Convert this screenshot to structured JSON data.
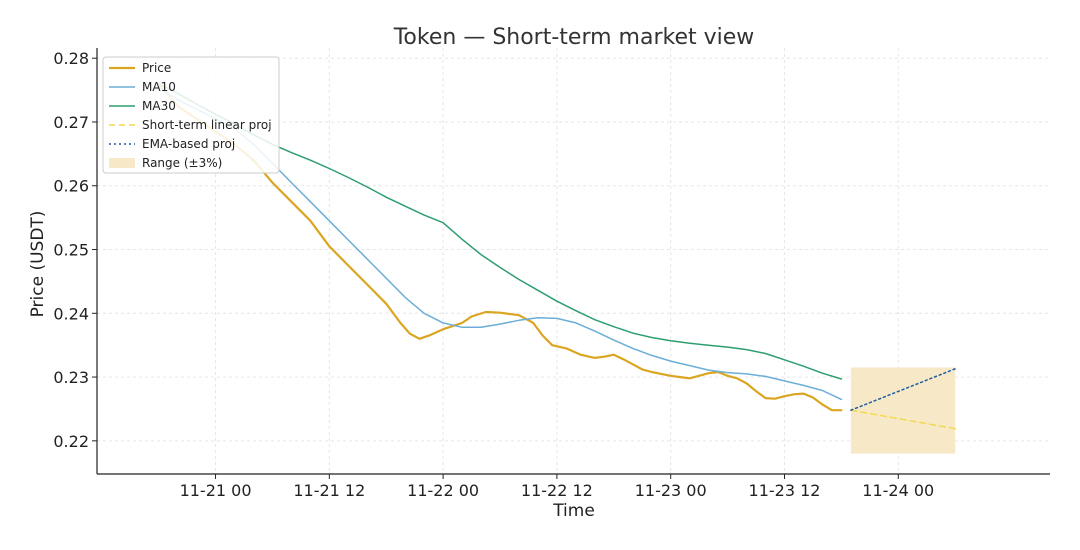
{
  "chart_data": {
    "type": "line",
    "title": "Token — Short-term market view",
    "xlabel": "Time",
    "ylabel": "Price (USDT)",
    "x_unit": "hours",
    "xlim": [
      -12.5,
      88
    ],
    "ylim": [
      0.2148,
      0.2816
    ],
    "x_ticks": [
      {
        "x": 0,
        "label": "11-21 00"
      },
      {
        "x": 12,
        "label": "11-21 12"
      },
      {
        "x": 24,
        "label": "11-22 00"
      },
      {
        "x": 36,
        "label": "11-22 12"
      },
      {
        "x": 48,
        "label": "11-23 00"
      },
      {
        "x": 60,
        "label": "11-23 12"
      },
      {
        "x": 72,
        "label": "11-24 00"
      }
    ],
    "y_ticks": [
      {
        "y": 0.22,
        "label": "0.22"
      },
      {
        "y": 0.23,
        "label": "0.23"
      },
      {
        "y": 0.24,
        "label": "0.24"
      },
      {
        "y": 0.25,
        "label": "0.25"
      },
      {
        "y": 0.26,
        "label": "0.26"
      },
      {
        "y": 0.27,
        "label": "0.27"
      },
      {
        "y": 0.28,
        "label": "0.28"
      }
    ],
    "grid": true,
    "legend_position": "top-left",
    "series": [
      {
        "name": "Price",
        "color": "#DAA520",
        "style": "solid",
        "points": [
          [
            -6,
            0.276
          ],
          [
            -4,
            0.2725
          ],
          [
            -2,
            0.2705
          ],
          [
            0,
            0.2685
          ],
          [
            2,
            0.2665
          ],
          [
            4,
            0.264
          ],
          [
            6,
            0.2605
          ],
          [
            8,
            0.2575
          ],
          [
            10,
            0.2545
          ],
          [
            12,
            0.2505
          ],
          [
            14,
            0.2475
          ],
          [
            16,
            0.2445
          ],
          [
            18,
            0.2415
          ],
          [
            19.5,
            0.2385
          ],
          [
            20.5,
            0.2368
          ],
          [
            21.5,
            0.236
          ],
          [
            22.5,
            0.2365
          ],
          [
            24,
            0.2375
          ],
          [
            26,
            0.2385
          ],
          [
            27,
            0.2395
          ],
          [
            28.5,
            0.2402
          ],
          [
            30,
            0.2401
          ],
          [
            32,
            0.2397
          ],
          [
            33.5,
            0.2385
          ],
          [
            34.5,
            0.2365
          ],
          [
            35.5,
            0.235
          ],
          [
            37,
            0.2345
          ],
          [
            38.5,
            0.2335
          ],
          [
            40,
            0.233
          ],
          [
            41,
            0.2332
          ],
          [
            42,
            0.2335
          ],
          [
            43,
            0.2328
          ],
          [
            44,
            0.232
          ],
          [
            45,
            0.2312
          ],
          [
            46,
            0.2308
          ],
          [
            47,
            0.2305
          ],
          [
            48,
            0.2302
          ],
          [
            49,
            0.23
          ],
          [
            50,
            0.2298
          ],
          [
            51,
            0.2302
          ],
          [
            52,
            0.2306
          ],
          [
            53,
            0.2308
          ],
          [
            54,
            0.2302
          ],
          [
            55,
            0.2298
          ],
          [
            56,
            0.229
          ],
          [
            57,
            0.2278
          ],
          [
            58,
            0.2267
          ],
          [
            59,
            0.2266
          ],
          [
            60,
            0.227
          ],
          [
            61,
            0.2273
          ],
          [
            62,
            0.2274
          ],
          [
            63,
            0.2268
          ],
          [
            64,
            0.2257
          ],
          [
            65,
            0.2248
          ],
          [
            66,
            0.2248
          ]
        ]
      },
      {
        "name": "MA10",
        "color": "#6BAED6",
        "style": "solid",
        "points": [
          [
            -6,
            0.2755
          ],
          [
            -4,
            0.2735
          ],
          [
            -2,
            0.272
          ],
          [
            0,
            0.2705
          ],
          [
            2,
            0.269
          ],
          [
            4,
            0.2665
          ],
          [
            6,
            0.2635
          ],
          [
            8,
            0.2605
          ],
          [
            10,
            0.2575
          ],
          [
            12,
            0.2545
          ],
          [
            14,
            0.2515
          ],
          [
            16,
            0.2485
          ],
          [
            18,
            0.2455
          ],
          [
            20,
            0.2425
          ],
          [
            22,
            0.24
          ],
          [
            24,
            0.2385
          ],
          [
            26,
            0.2378
          ],
          [
            28,
            0.2378
          ],
          [
            30,
            0.2383
          ],
          [
            32,
            0.2389
          ],
          [
            34,
            0.2393
          ],
          [
            36,
            0.2392
          ],
          [
            38,
            0.2385
          ],
          [
            40,
            0.2372
          ],
          [
            42,
            0.2358
          ],
          [
            44,
            0.2345
          ],
          [
            46,
            0.2334
          ],
          [
            48,
            0.2325
          ],
          [
            50,
            0.2318
          ],
          [
            52,
            0.2311
          ],
          [
            54,
            0.2307
          ],
          [
            56,
            0.2305
          ],
          [
            58,
            0.2301
          ],
          [
            60,
            0.2294
          ],
          [
            62,
            0.2287
          ],
          [
            64,
            0.2279
          ],
          [
            66,
            0.2265
          ]
        ]
      },
      {
        "name": "MA30",
        "color": "#2E9E6E",
        "style": "solid",
        "points": [
          [
            -6,
            0.276
          ],
          [
            -4,
            0.2745
          ],
          [
            -2,
            0.2728
          ],
          [
            0,
            0.2712
          ],
          [
            2,
            0.2697
          ],
          [
            4,
            0.268
          ],
          [
            6,
            0.2665
          ],
          [
            8,
            0.2652
          ],
          [
            10,
            0.264
          ],
          [
            12,
            0.2627
          ],
          [
            14,
            0.2613
          ],
          [
            16,
            0.2598
          ],
          [
            18,
            0.2582
          ],
          [
            20,
            0.2568
          ],
          [
            22,
            0.2554
          ],
          [
            24,
            0.2542
          ],
          [
            26,
            0.2516
          ],
          [
            28,
            0.2492
          ],
          [
            30,
            0.2472
          ],
          [
            32,
            0.2453
          ],
          [
            34,
            0.2436
          ],
          [
            36,
            0.2419
          ],
          [
            38,
            0.2404
          ],
          [
            40,
            0.239
          ],
          [
            42,
            0.2379
          ],
          [
            44,
            0.2369
          ],
          [
            46,
            0.2362
          ],
          [
            48,
            0.2357
          ],
          [
            50,
            0.2353
          ],
          [
            52,
            0.235
          ],
          [
            54,
            0.2347
          ],
          [
            56,
            0.2343
          ],
          [
            58,
            0.2337
          ],
          [
            60,
            0.2327
          ],
          [
            62,
            0.2317
          ],
          [
            64,
            0.2306
          ],
          [
            66,
            0.2297
          ]
        ]
      },
      {
        "name": "Short-term linear proj",
        "color": "#F2D94E",
        "style": "dashed",
        "points": [
          [
            67,
            0.2248
          ],
          [
            78,
            0.2219
          ]
        ]
      },
      {
        "name": "EMA-based proj",
        "color": "#1F5FA0",
        "style": "dotted",
        "points": [
          [
            67,
            0.2248
          ],
          [
            78,
            0.2313
          ]
        ]
      }
    ],
    "range_band": {
      "name": "Range (±3%)",
      "color": "#F7E9C8",
      "x": [
        67,
        78
      ],
      "y": [
        0.218,
        0.2315
      ]
    }
  }
}
